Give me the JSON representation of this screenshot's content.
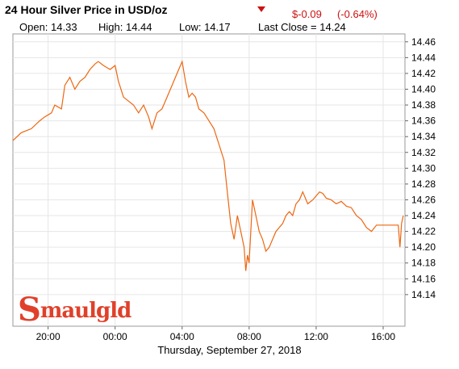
{
  "header": {
    "title": "24 Hour Silver Price in USD/oz",
    "change_abs": "$-0.09",
    "change_pct": "(-0.64%)",
    "open": "Open: 14.33",
    "high": "High: 14.44",
    "low": "Low: 14.17",
    "last_close": "Last Close = 14.24",
    "accent_color": "#cc1111",
    "down_icon": "triangle-down-icon"
  },
  "logo_text": {
    "initial": "S",
    "rest": "maulgld"
  },
  "chart_data": {
    "type": "line",
    "title": "24 Hour Silver Price in USD/oz",
    "xlabel": "Thursday, September 27, 2018",
    "ylabel": "",
    "xlim": [
      17.9,
      41.3
    ],
    "ylim": [
      14.1,
      14.47
    ],
    "x_ticks": [
      {
        "value": 20,
        "label": "20:00"
      },
      {
        "value": 24,
        "label": "00:00"
      },
      {
        "value": 28,
        "label": "04:00"
      },
      {
        "value": 32,
        "label": "08:00"
      },
      {
        "value": 36,
        "label": "12:00"
      },
      {
        "value": 40,
        "label": "16:00"
      }
    ],
    "y_ticks": [
      "14.14",
      "14.16",
      "14.18",
      "14.20",
      "14.22",
      "14.24",
      "14.26",
      "14.28",
      "14.30",
      "14.32",
      "14.34",
      "14.36",
      "14.38",
      "14.40",
      "14.42",
      "14.44",
      "14.46"
    ],
    "grid": true,
    "line_color": "#ee6611",
    "series": [
      {
        "x": [
          17.9,
          18.4,
          19.0,
          19.5,
          19.8,
          20.2,
          20.4,
          20.8,
          21.0,
          21.3,
          21.6,
          21.9,
          22.2,
          22.5,
          22.8,
          23.0,
          23.3,
          23.7,
          24.0,
          24.2,
          24.5,
          24.8,
          25.1,
          25.4,
          25.7,
          26.0,
          26.2,
          26.5,
          26.8,
          27.1,
          27.4,
          27.7,
          28.0,
          28.2,
          28.4,
          28.6,
          28.8,
          29.0,
          29.3,
          29.6,
          29.9,
          30.2,
          30.5,
          30.7,
          30.9,
          31.1,
          31.3,
          31.5,
          31.7,
          31.8,
          31.9,
          32.0,
          32.1,
          32.2,
          32.4,
          32.6,
          32.8,
          33.0,
          33.2,
          33.4,
          33.6,
          33.8,
          34.0,
          34.2,
          34.4,
          34.6,
          34.8,
          35.0,
          35.2,
          35.5,
          35.8,
          36.0,
          36.2,
          36.4,
          36.6,
          36.9,
          37.2,
          37.5,
          37.8,
          38.1,
          38.4,
          38.7,
          39.0,
          39.3,
          39.6,
          39.8,
          40.0,
          40.3,
          40.6,
          40.9,
          41.0,
          41.1,
          41.2
        ],
        "y": [
          14.335,
          14.345,
          14.35,
          14.36,
          14.365,
          14.37,
          14.38,
          14.375,
          14.405,
          14.415,
          14.4,
          14.41,
          14.415,
          14.425,
          14.432,
          14.435,
          14.43,
          14.425,
          14.43,
          14.41,
          14.39,
          14.385,
          14.38,
          14.37,
          14.38,
          14.365,
          14.35,
          14.37,
          14.375,
          14.39,
          14.405,
          14.42,
          14.435,
          14.41,
          14.39,
          14.395,
          14.39,
          14.375,
          14.37,
          14.36,
          14.35,
          14.33,
          14.31,
          14.27,
          14.23,
          14.21,
          14.24,
          14.22,
          14.2,
          14.17,
          14.19,
          14.18,
          14.22,
          14.26,
          14.24,
          14.22,
          14.21,
          14.195,
          14.2,
          14.21,
          14.22,
          14.225,
          14.23,
          14.24,
          14.245,
          14.24,
          14.255,
          14.26,
          14.27,
          14.255,
          14.26,
          14.265,
          14.27,
          14.268,
          14.262,
          14.26,
          14.255,
          14.258,
          14.252,
          14.25,
          14.24,
          14.235,
          14.225,
          14.22,
          14.228,
          14.228,
          14.228,
          14.228,
          14.228,
          14.228,
          14.2,
          14.23,
          14.24
        ]
      }
    ]
  }
}
